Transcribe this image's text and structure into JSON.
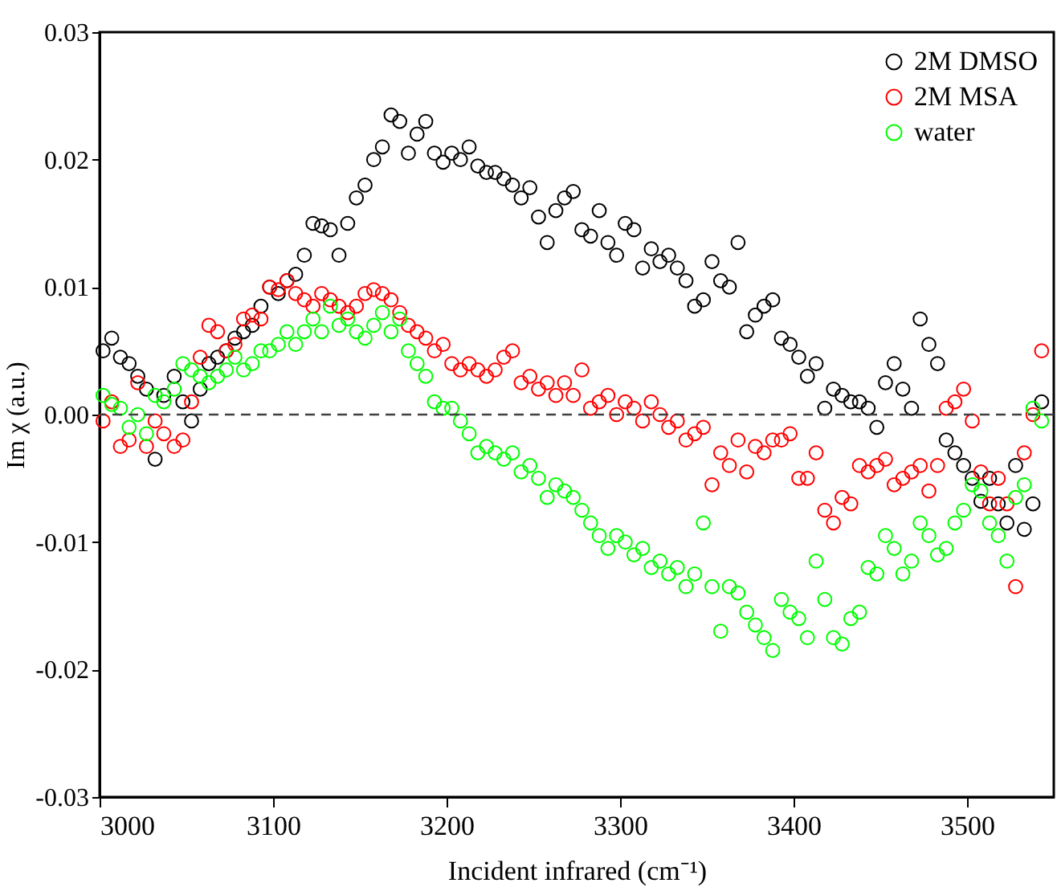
{
  "chart_data": {
    "type": "scatter",
    "xlabel": "Incident infrared (cm⁻¹)",
    "ylabel": "Im χ (a.u.)",
    "xlim": [
      3000,
      3550
    ],
    "xticks": [
      3000,
      3100,
      3200,
      3300,
      3400,
      3500
    ],
    "ylim": [
      -0.03,
      0.03
    ],
    "yticks": [
      -0.03,
      -0.02,
      -0.01,
      {
        "value": 0,
        "label": "0.00"
      },
      0.01,
      0.02,
      0.03
    ],
    "grid": false,
    "legend": "top right",
    "marker": "circle",
    "ref_lines": [
      {
        "axis": "y",
        "value": 0,
        "label": null,
        "color": "#404040",
        "line_style": "dashed"
      }
    ],
    "x": [
      3002,
      3007,
      3012,
      3017,
      3022,
      3027,
      3032,
      3037,
      3043,
      3048,
      3053,
      3058,
      3063,
      3068,
      3073,
      3078,
      3083,
      3088,
      3093,
      3098,
      3103,
      3108,
      3113,
      3118,
      3123,
      3128,
      3133,
      3138,
      3143,
      3148,
      3153,
      3158,
      3163,
      3168,
      3173,
      3178,
      3183,
      3188,
      3193,
      3198,
      3203,
      3208,
      3213,
      3218,
      3223,
      3228,
      3233,
      3238,
      3243,
      3248,
      3253,
      3258,
      3263,
      3268,
      3273,
      3278,
      3283,
      3288,
      3293,
      3298,
      3303,
      3308,
      3313,
      3318,
      3323,
      3328,
      3333,
      3338,
      3343,
      3348,
      3353,
      3358,
      3363,
      3368,
      3373,
      3378,
      3383,
      3388,
      3393,
      3398,
      3403,
      3408,
      3413,
      3418,
      3423,
      3428,
      3433,
      3438,
      3443,
      3448,
      3453,
      3458,
      3463,
      3468,
      3473,
      3478,
      3483,
      3488,
      3493,
      3498,
      3503,
      3508,
      3513,
      3518,
      3523,
      3528,
      3533,
      3538,
      3543
    ],
    "series": [
      {
        "name": "2M DMSO",
        "color": "#000000",
        "values": [
          0.005,
          0.006,
          0.0045,
          0.004,
          0.003,
          0.002,
          -0.0035,
          0.0015,
          0.003,
          0.001,
          -0.0005,
          0.002,
          0.004,
          0.0045,
          0.005,
          0.006,
          0.0065,
          0.007,
          0.0085,
          0.01,
          0.0095,
          0.0105,
          0.011,
          0.0125,
          0.015,
          0.0148,
          0.0145,
          0.0125,
          0.015,
          0.017,
          0.018,
          0.02,
          0.021,
          0.0235,
          0.023,
          0.0205,
          0.022,
          0.023,
          0.0205,
          0.0198,
          0.0205,
          0.02,
          0.021,
          0.0195,
          0.019,
          0.019,
          0.0185,
          0.018,
          0.017,
          0.0178,
          0.0155,
          0.0135,
          0.016,
          0.017,
          0.0175,
          0.0145,
          0.014,
          0.016,
          0.0135,
          0.0125,
          0.015,
          0.0145,
          0.0115,
          0.013,
          0.012,
          0.0125,
          0.0115,
          0.0105,
          0.0085,
          0.009,
          0.012,
          0.0105,
          0.01,
          0.0135,
          0.0065,
          0.0078,
          0.0085,
          0.009,
          0.006,
          0.0055,
          0.0045,
          0.003,
          0.004,
          0.0005,
          0.002,
          0.0015,
          0.001,
          0.001,
          0.0005,
          -0.001,
          0.0025,
          0.004,
          0.002,
          0.0005,
          0.0075,
          0.0055,
          0.004,
          -0.002,
          -0.003,
          -0.004,
          -0.005,
          -0.0068,
          -0.005,
          -0.007,
          -0.0085,
          -0.004,
          -0.009,
          -0.007,
          0.001
        ]
      },
      {
        "name": "2M MSA",
        "color": "#ff0000",
        "values": [
          -0.0005,
          0.001,
          -0.0025,
          -0.002,
          0.0025,
          -0.0025,
          -0.0005,
          -0.0015,
          -0.0025,
          -0.002,
          0.001,
          0.0045,
          0.007,
          0.0065,
          0.005,
          0.0055,
          0.0075,
          0.0078,
          0.0075,
          0.01,
          0.0098,
          0.0105,
          0.0095,
          0.009,
          0.0085,
          0.0095,
          0.009,
          0.0085,
          0.008,
          0.0085,
          0.0095,
          0.0098,
          0.0095,
          0.009,
          0.008,
          0.007,
          0.0065,
          0.006,
          0.005,
          0.0055,
          0.004,
          0.0035,
          0.004,
          0.0035,
          0.003,
          0.0035,
          0.0045,
          0.005,
          0.0025,
          0.003,
          0.002,
          0.0025,
          0.0015,
          0.0025,
          0.0015,
          0.0035,
          0.0005,
          0.001,
          0.0015,
          0,
          0.001,
          0.0005,
          -0.0005,
          0.001,
          0,
          -0.001,
          -0.0005,
          -0.002,
          -0.0015,
          -0.001,
          -0.0055,
          -0.003,
          -0.004,
          -0.002,
          -0.0045,
          -0.0025,
          -0.003,
          -0.002,
          -0.002,
          -0.0015,
          -0.005,
          -0.005,
          -0.003,
          -0.0075,
          -0.0085,
          -0.0065,
          -0.007,
          -0.004,
          -0.0045,
          -0.004,
          -0.0035,
          -0.0055,
          -0.005,
          -0.0045,
          -0.004,
          -0.006,
          -0.004,
          0.0005,
          0.001,
          0.002,
          -0.0005,
          -0.0045,
          -0.007,
          -0.005,
          -0.007,
          -0.0135,
          -0.003,
          0,
          0.005
        ]
      },
      {
        "name": " water",
        "color": "#00ff00",
        "values": [
          0.0015,
          0.0008,
          0.0005,
          -0.001,
          0,
          -0.0015,
          0.0015,
          0.001,
          0.002,
          0.004,
          0.0035,
          0.003,
          0.0025,
          0.003,
          0.0035,
          0.0045,
          0.0035,
          0.004,
          0.005,
          0.005,
          0.0055,
          0.0065,
          0.0055,
          0.0065,
          0.0075,
          0.0065,
          0.0085,
          0.007,
          0.0075,
          0.0065,
          0.006,
          0.007,
          0.008,
          0.0065,
          0.0075,
          0.005,
          0.004,
          0.003,
          0.001,
          0.0005,
          0.0005,
          -0.0005,
          -0.0015,
          -0.003,
          -0.0025,
          -0.003,
          -0.0035,
          -0.003,
          -0.0045,
          -0.004,
          -0.005,
          -0.0065,
          -0.0055,
          -0.006,
          -0.0065,
          -0.0075,
          -0.0085,
          -0.0095,
          -0.0105,
          -0.0095,
          -0.01,
          -0.011,
          -0.0105,
          -0.012,
          -0.0115,
          -0.0125,
          -0.012,
          -0.0135,
          -0.0125,
          -0.0085,
          -0.0135,
          -0.017,
          -0.0135,
          -0.014,
          -0.0155,
          -0.0165,
          -0.0175,
          -0.0185,
          -0.0145,
          -0.0155,
          -0.016,
          -0.0175,
          -0.0115,
          -0.0145,
          -0.0175,
          -0.018,
          -0.016,
          -0.0155,
          -0.012,
          -0.0125,
          -0.0095,
          -0.0105,
          -0.0125,
          -0.0115,
          -0.0085,
          -0.0095,
          -0.011,
          -0.0105,
          -0.0085,
          -0.0075,
          -0.0055,
          -0.006,
          -0.0085,
          -0.0095,
          -0.0115,
          -0.0065,
          -0.0055,
          0.0005,
          -0.0005
        ]
      }
    ]
  }
}
